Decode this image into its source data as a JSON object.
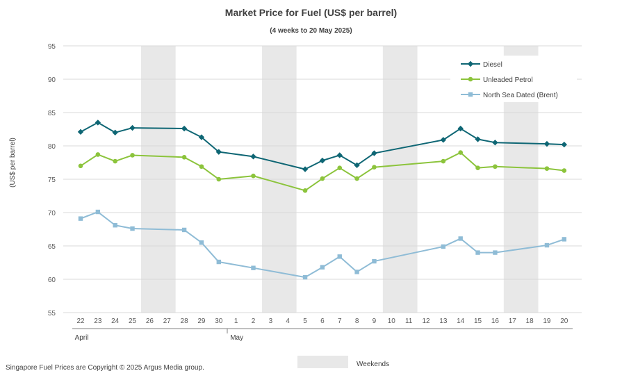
{
  "chart_data": {
    "type": "line",
    "title": "Market Price for Fuel (US$ per barrel)",
    "subtitle": "(4 weeks to 20 May 2025)",
    "ylabel": "(US$ per barrel)",
    "ylim": [
      55,
      95
    ],
    "yticks": [
      55,
      60,
      65,
      70,
      75,
      80,
      85,
      90,
      95
    ],
    "grid": true,
    "legend_position": "top-right",
    "categories": [
      "22",
      "23",
      "24",
      "25",
      "26",
      "27",
      "28",
      "29",
      "30",
      "1",
      "2",
      "3",
      "4",
      "5",
      "6",
      "7",
      "8",
      "9",
      "10",
      "11",
      "12",
      "13",
      "14",
      "15",
      "16",
      "17",
      "18",
      "19",
      "20"
    ],
    "months": [
      {
        "label": "April",
        "start": "22",
        "end": "30"
      },
      {
        "label": "May",
        "start": "1",
        "end": "20"
      }
    ],
    "weekends": [
      [
        "26",
        "27"
      ],
      [
        "3",
        "4"
      ],
      [
        "10",
        "11"
      ],
      [
        "17",
        "18"
      ]
    ],
    "weekend_label": "Weekends",
    "series": [
      {
        "name": "Diesel",
        "color": "#0e6674",
        "marker": "diamond",
        "values": [
          82.1,
          83.5,
          82.0,
          82.7,
          null,
          null,
          82.6,
          81.3,
          79.1,
          null,
          78.4,
          null,
          null,
          76.5,
          77.8,
          78.6,
          77.1,
          78.9,
          null,
          null,
          null,
          80.9,
          82.6,
          81.0,
          80.5,
          null,
          null,
          80.3,
          80.2
        ]
      },
      {
        "name": "Unleaded Petrol",
        "color": "#8cc43c",
        "marker": "circle",
        "values": [
          77.0,
          78.7,
          77.7,
          78.6,
          null,
          null,
          78.3,
          76.9,
          75.0,
          null,
          75.5,
          null,
          null,
          73.3,
          75.1,
          76.7,
          75.1,
          76.8,
          null,
          null,
          null,
          77.7,
          79.0,
          76.7,
          76.9,
          null,
          null,
          76.6,
          76.3
        ]
      },
      {
        "name": "North Sea Dated (Brent)",
        "color": "#8fbcd6",
        "marker": "square",
        "values": [
          69.1,
          70.1,
          68.1,
          67.6,
          null,
          null,
          67.4,
          65.5,
          62.6,
          null,
          61.7,
          null,
          null,
          60.3,
          61.8,
          63.4,
          61.1,
          62.7,
          null,
          null,
          null,
          64.9,
          66.1,
          64.0,
          64.0,
          null,
          null,
          65.1,
          66.0
        ]
      }
    ]
  },
  "footer": {
    "copyright": "Singapore Fuel Prices are Copyright © 2025 Argus Media group."
  }
}
